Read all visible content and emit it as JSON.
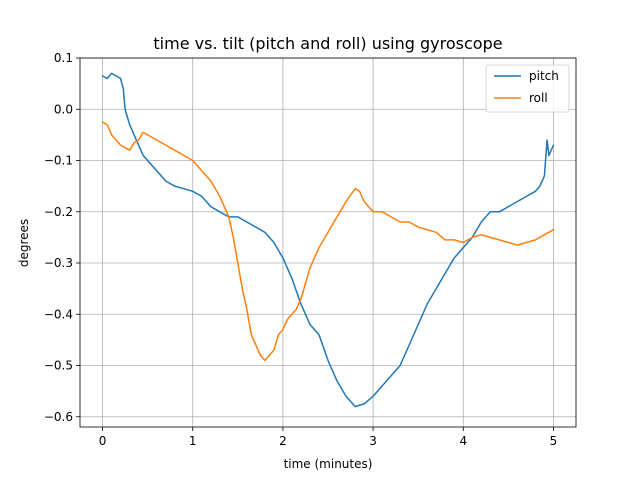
{
  "chart_data": {
    "type": "line",
    "title": "time vs. tilt (pitch and roll) using gyroscope",
    "xlabel": "time (minutes)",
    "ylabel": "degrees",
    "xlim": [
      -0.25,
      5.25
    ],
    "ylim": [
      -0.62,
      0.1
    ],
    "xticks": [
      0,
      1,
      2,
      3,
      4,
      5
    ],
    "xtick_labels": [
      "0",
      "1",
      "2",
      "3",
      "4",
      "5"
    ],
    "yticks": [
      0.1,
      0.0,
      -0.1,
      -0.2,
      -0.3,
      -0.4,
      -0.5,
      -0.6
    ],
    "ytick_labels": [
      "0.1",
      "0.0",
      "−0.1",
      "−0.2",
      "−0.3",
      "−0.4",
      "−0.5",
      "−0.6"
    ],
    "grid": true,
    "legend": "top-right",
    "series": [
      {
        "name": "pitch",
        "color": "#1f77b4",
        "x": [
          0.0,
          0.05,
          0.1,
          0.15,
          0.2,
          0.23,
          0.25,
          0.3,
          0.35,
          0.4,
          0.45,
          0.5,
          0.6,
          0.7,
          0.8,
          0.9,
          1.0,
          1.1,
          1.2,
          1.3,
          1.4,
          1.5,
          1.6,
          1.7,
          1.8,
          1.9,
          2.0,
          2.1,
          2.2,
          2.3,
          2.4,
          2.5,
          2.6,
          2.7,
          2.8,
          2.9,
          3.0,
          3.1,
          3.2,
          3.3,
          3.4,
          3.5,
          3.6,
          3.7,
          3.8,
          3.9,
          4.0,
          4.1,
          4.2,
          4.3,
          4.4,
          4.5,
          4.6,
          4.7,
          4.8,
          4.85,
          4.9,
          4.93,
          4.95,
          5.0
        ],
        "y": [
          0.065,
          0.06,
          0.07,
          0.065,
          0.06,
          0.04,
          0.0,
          -0.03,
          -0.05,
          -0.07,
          -0.09,
          -0.1,
          -0.12,
          -0.14,
          -0.15,
          -0.155,
          -0.16,
          -0.17,
          -0.19,
          -0.2,
          -0.21,
          -0.21,
          -0.22,
          -0.23,
          -0.24,
          -0.26,
          -0.29,
          -0.33,
          -0.38,
          -0.42,
          -0.44,
          -0.49,
          -0.53,
          -0.56,
          -0.58,
          -0.575,
          -0.56,
          -0.54,
          -0.52,
          -0.5,
          -0.46,
          -0.42,
          -0.38,
          -0.35,
          -0.32,
          -0.29,
          -0.27,
          -0.25,
          -0.22,
          -0.2,
          -0.2,
          -0.19,
          -0.18,
          -0.17,
          -0.16,
          -0.15,
          -0.13,
          -0.06,
          -0.09,
          -0.07
        ]
      },
      {
        "name": "roll",
        "color": "#ff7f0e",
        "x": [
          0.0,
          0.05,
          0.1,
          0.15,
          0.2,
          0.3,
          0.35,
          0.4,
          0.45,
          0.5,
          0.6,
          0.7,
          0.8,
          0.9,
          1.0,
          1.1,
          1.2,
          1.3,
          1.4,
          1.45,
          1.5,
          1.55,
          1.6,
          1.65,
          1.7,
          1.75,
          1.8,
          1.85,
          1.9,
          1.95,
          2.0,
          2.05,
          2.1,
          2.15,
          2.2,
          2.25,
          2.3,
          2.4,
          2.5,
          2.6,
          2.7,
          2.8,
          2.85,
          2.9,
          3.0,
          3.1,
          3.2,
          3.3,
          3.4,
          3.5,
          3.6,
          3.7,
          3.8,
          3.9,
          4.0,
          4.1,
          4.2,
          4.3,
          4.4,
          4.5,
          4.6,
          4.7,
          4.8,
          4.9,
          4.95,
          5.0
        ],
        "y": [
          -0.025,
          -0.03,
          -0.05,
          -0.06,
          -0.07,
          -0.08,
          -0.065,
          -0.06,
          -0.045,
          -0.05,
          -0.06,
          -0.07,
          -0.08,
          -0.09,
          -0.1,
          -0.12,
          -0.14,
          -0.17,
          -0.21,
          -0.25,
          -0.3,
          -0.35,
          -0.39,
          -0.44,
          -0.46,
          -0.48,
          -0.49,
          -0.48,
          -0.47,
          -0.44,
          -0.43,
          -0.41,
          -0.4,
          -0.39,
          -0.37,
          -0.34,
          -0.31,
          -0.27,
          -0.24,
          -0.21,
          -0.18,
          -0.155,
          -0.16,
          -0.18,
          -0.2,
          -0.2,
          -0.21,
          -0.22,
          -0.22,
          -0.23,
          -0.235,
          -0.24,
          -0.255,
          -0.255,
          -0.26,
          -0.25,
          -0.245,
          -0.25,
          -0.255,
          -0.26,
          -0.265,
          -0.26,
          -0.255,
          -0.245,
          -0.24,
          -0.235
        ]
      }
    ]
  }
}
